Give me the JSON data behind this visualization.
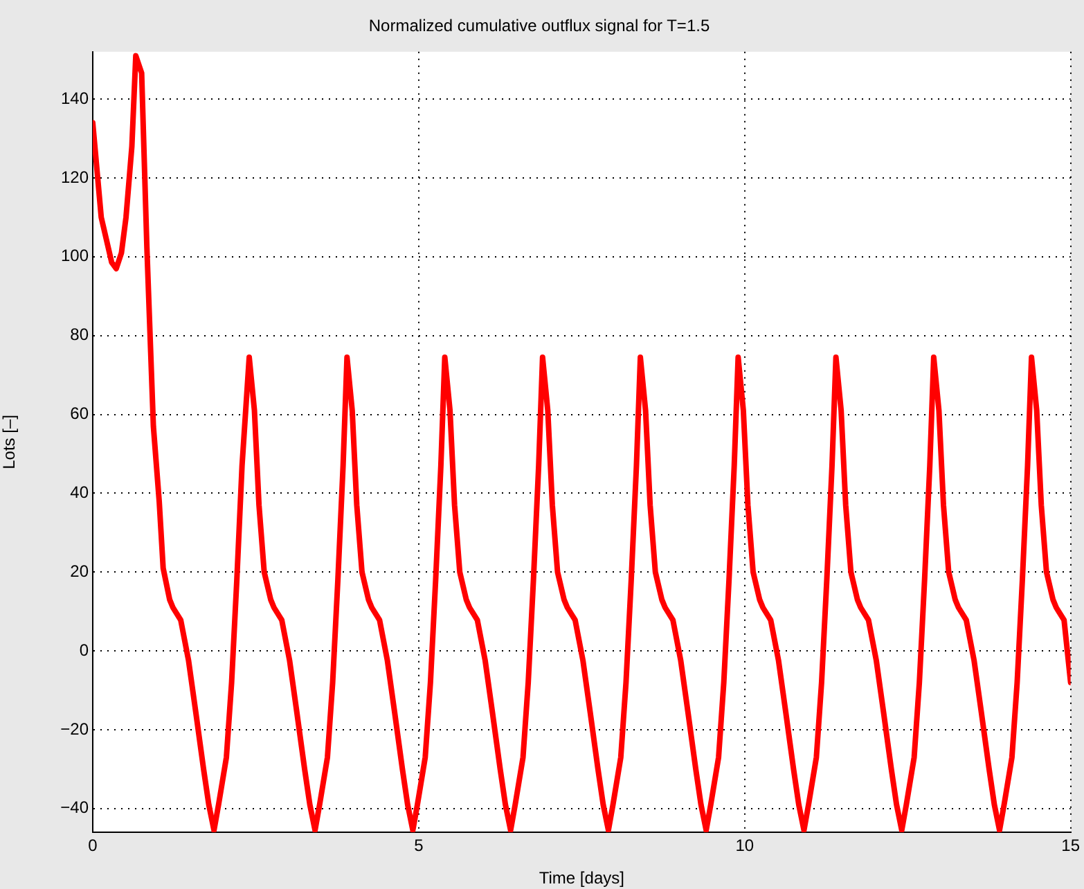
{
  "chart_data": {
    "type": "line",
    "title": "Normalized cumulative outflux signal for T=1.5",
    "xlabel": "Time [days]",
    "ylabel": "Lots [–]",
    "xlim": [
      0,
      15
    ],
    "ylim": [
      -46,
      152
    ],
    "xticks": [
      0,
      5,
      10,
      15
    ],
    "yticks": [
      -40,
      -20,
      0,
      20,
      40,
      60,
      80,
      100,
      120,
      140
    ],
    "grid": true,
    "legend": false,
    "marker": "none",
    "line_style": "solid",
    "series": [
      {
        "color": "#ff0000",
        "x": [
          0,
          0.13,
          0.29,
          0.36,
          0.44,
          0.51,
          0.6,
          0.66,
          0.75,
          0.83,
          0.93,
          1.02,
          1.08,
          1.18,
          1.23,
          1.35,
          1.47,
          1.58,
          1.7,
          1.78,
          1.86,
          1.93,
          2.05,
          2.13,
          2.21,
          2.29,
          2.4,
          2.48,
          2.55,
          2.63,
          2.73,
          2.78,
          2.9,
          3.02,
          3.13,
          3.25,
          3.33,
          3.41,
          3.48,
          3.6,
          3.68,
          3.76,
          3.84,
          3.9,
          3.98,
          4.05,
          4.13,
          4.23,
          4.28,
          4.4,
          4.52,
          4.63,
          4.75,
          4.83,
          4.91,
          4.98,
          5.1,
          5.18,
          5.26,
          5.34,
          5.4,
          5.48,
          5.55,
          5.63,
          5.73,
          5.78,
          5.9,
          6.02,
          6.13,
          6.25,
          6.33,
          6.41,
          6.48,
          6.6,
          6.68,
          6.76,
          6.84,
          6.9,
          6.98,
          7.05,
          7.13,
          7.23,
          7.28,
          7.4,
          7.52,
          7.63,
          7.75,
          7.83,
          7.91,
          7.98,
          8.1,
          8.18,
          8.26,
          8.34,
          8.4,
          8.48,
          8.55,
          8.63,
          8.73,
          8.78,
          8.9,
          9.02,
          9.13,
          9.25,
          9.33,
          9.41,
          9.48,
          9.6,
          9.68,
          9.76,
          9.84,
          9.9,
          9.98,
          10.05,
          10.13,
          10.23,
          10.28,
          10.4,
          10.52,
          10.63,
          10.75,
          10.83,
          10.91,
          10.98,
          11.1,
          11.18,
          11.26,
          11.34,
          11.4,
          11.48,
          11.55,
          11.63,
          11.73,
          11.78,
          11.9,
          12.02,
          12.13,
          12.25,
          12.33,
          12.41,
          12.48,
          12.6,
          12.68,
          12.76,
          12.84,
          12.9,
          12.98,
          13.05,
          13.13,
          13.23,
          13.28,
          13.4,
          13.52,
          13.63,
          13.75,
          13.83,
          13.91,
          13.98,
          14.1,
          14.18,
          14.26,
          14.34,
          14.4,
          14.48,
          14.55,
          14.63,
          14.73,
          14.78,
          14.9,
          15
        ],
        "values": [
          134,
          110,
          98.6,
          97,
          101,
          110,
          128,
          151,
          146.6,
          102.5,
          57,
          37.8,
          21,
          13,
          11,
          7.8,
          -2.5,
          -15.5,
          -30,
          -39,
          -45.5,
          -39,
          -27,
          -8,
          18,
          47,
          74.5,
          61,
          37,
          20,
          13,
          11,
          7.8,
          -2.5,
          -15.5,
          -30,
          -39,
          -45.5,
          -39,
          -27,
          -8,
          18,
          47,
          74.5,
          61,
          37,
          20,
          13,
          11,
          7.8,
          -2.5,
          -15.5,
          -30,
          -39,
          -45.5,
          -39,
          -27,
          -8,
          18,
          47,
          74.5,
          61,
          37,
          20,
          13,
          11,
          7.8,
          -2.5,
          -15.5,
          -30,
          -39,
          -45.5,
          -39,
          -27,
          -8,
          18,
          47,
          74.5,
          61,
          37,
          20,
          13,
          11,
          7.8,
          -2.5,
          -15.5,
          -30,
          -39,
          -45.5,
          -39,
          -27,
          -8,
          18,
          47,
          74.5,
          61,
          37,
          20,
          13,
          11,
          7.8,
          -2.5,
          -15.5,
          -30,
          -39,
          -45.5,
          -39,
          -27,
          -8,
          18,
          47,
          74.5,
          61,
          37,
          20,
          13,
          11,
          7.8,
          -2.5,
          -15.5,
          -30,
          -39,
          -45.5,
          -39,
          -27,
          -8,
          18,
          47,
          74.5,
          61,
          37,
          20,
          13,
          11,
          7.8,
          -2.5,
          -15.5,
          -30,
          -39,
          -45.5,
          -39,
          -27,
          -8,
          18,
          47,
          74.5,
          61,
          37,
          20,
          13,
          11,
          7.8,
          -2.5,
          -15.5,
          -30,
          -39,
          -45.5,
          -39,
          -27,
          -8,
          18,
          47,
          74.5,
          61,
          37,
          20,
          13,
          11,
          7.8,
          -8
        ]
      }
    ]
  }
}
